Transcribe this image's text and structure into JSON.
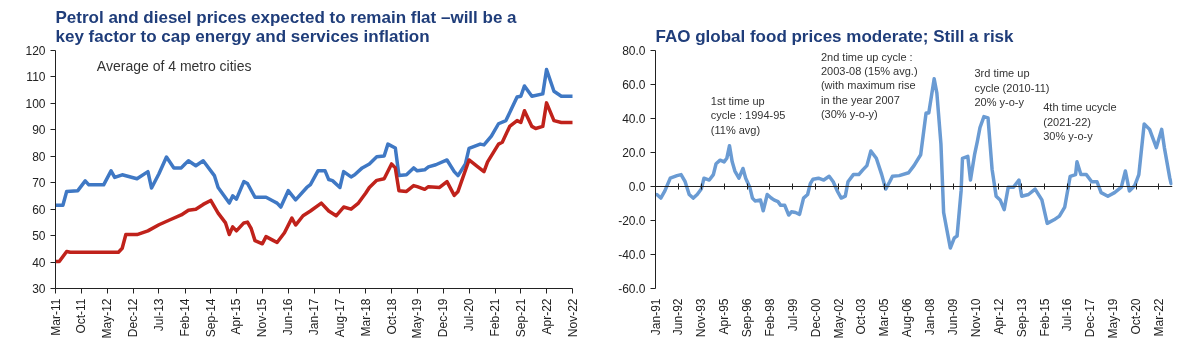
{
  "chart_data": [
    {
      "type": "line",
      "title": "Petrol and diesel prices expected to remain flat –will be a key factor to cap energy and services inflation",
      "annotations": [
        "Average of 4 metro cities"
      ],
      "xlim": [
        "2011-03",
        "2022-11"
      ],
      "xticks": [
        {
          "value": "2011-03",
          "label": "Mar-11"
        },
        {
          "value": "2011-10",
          "label": "Oct-11"
        },
        {
          "value": "2012-05",
          "label": "May-12"
        },
        {
          "value": "2012-12",
          "label": "Dec-12"
        },
        {
          "value": "2013-07",
          "label": "Jul-13"
        },
        {
          "value": "2014-02",
          "label": "Feb-14"
        },
        {
          "value": "2014-09",
          "label": "Sep-14"
        },
        {
          "value": "2015-04",
          "label": "Apr-15"
        },
        {
          "value": "2015-11",
          "label": "Nov-15"
        },
        {
          "value": "2016-06",
          "label": "Jun-16"
        },
        {
          "value": "2017-01",
          "label": "Jan-17"
        },
        {
          "value": "2017-08",
          "label": "Aug-17"
        },
        {
          "value": "2018-03",
          "label": "Mar-18"
        },
        {
          "value": "2018-10",
          "label": "Oct-18"
        },
        {
          "value": "2019-05",
          "label": "May-19"
        },
        {
          "value": "2019-12",
          "label": "Dec-19"
        },
        {
          "value": "2020-07",
          "label": "Jul-20"
        },
        {
          "value": "2021-02",
          "label": "Feb-21"
        },
        {
          "value": "2021-09",
          "label": "Sep-21"
        },
        {
          "value": "2022-04",
          "label": "Apr-22"
        },
        {
          "value": "2022-11",
          "label": "Nov-22"
        }
      ],
      "ylim": [
        30,
        120
      ],
      "yticks": [
        30,
        40,
        50,
        60,
        70,
        80,
        90,
        100,
        110,
        120
      ],
      "series": [
        {
          "color": "#3f78c4",
          "x": [
            "2011-03",
            "2011-05",
            "2011-06",
            "2011-09",
            "2011-11",
            "2011-12",
            "2012-04",
            "2012-06",
            "2012-07",
            "2012-09",
            "2013-01",
            "2013-04",
            "2013-05",
            "2013-07",
            "2013-09",
            "2013-11",
            "2014-01",
            "2014-02",
            "2014-03",
            "2014-05",
            "2014-07",
            "2014-10",
            "2014-11",
            "2015-02",
            "2015-03",
            "2015-04",
            "2015-06",
            "2015-07",
            "2015-09",
            "2015-12",
            "2016-02",
            "2016-03",
            "2016-04",
            "2016-06",
            "2016-08",
            "2016-11",
            "2016-12",
            "2017-02",
            "2017-04",
            "2017-05",
            "2017-06",
            "2017-08",
            "2017-09",
            "2017-11",
            "2017-12",
            "2018-02",
            "2018-04",
            "2018-06",
            "2018-08",
            "2018-09",
            "2018-11",
            "2018-12",
            "2019-02",
            "2019-04",
            "2019-05",
            "2019-07",
            "2019-08",
            "2019-10",
            "2020-01",
            "2020-03",
            "2020-04",
            "2020-06",
            "2020-07",
            "2020-10",
            "2020-11",
            "2021-01",
            "2021-03",
            "2021-05",
            "2021-08",
            "2021-09",
            "2021-10",
            "2021-12",
            "2022-03",
            "2022-04",
            "2022-06",
            "2022-08",
            "2022-11"
          ],
          "values": [
            61.5,
            61.5,
            66.7,
            67,
            70.7,
            69.2,
            69.2,
            74.5,
            72,
            73,
            71.5,
            74.2,
            68,
            73.4,
            79.7,
            75.6,
            75.6,
            77.1,
            78.3,
            76.4,
            78.3,
            72.7,
            68.2,
            62.3,
            65,
            63.8,
            70.4,
            69.7,
            64.5,
            64.5,
            63,
            62.3,
            60.8,
            67,
            63.5,
            68.2,
            69.3,
            74.5,
            74.5,
            71.2,
            70.8,
            68.2,
            74.2,
            72.2,
            73,
            75.6,
            77.1,
            79.8,
            80.1,
            84.6,
            83.1,
            72.7,
            73,
            75.6,
            74.5,
            74.9,
            76,
            76.8,
            78.6,
            74.2,
            72.7,
            77.1,
            83,
            84.6,
            84.3,
            87.6,
            92.3,
            93.5,
            102.4,
            102.7,
            106.6,
            102.7,
            103.6,
            112.8,
            104.6,
            102.7,
            102.7
          ]
        },
        {
          "color": "#c0221b",
          "x": [
            "2011-03",
            "2011-04",
            "2011-06",
            "2011-07",
            "2012-08",
            "2012-09",
            "2012-10",
            "2013-01",
            "2013-04",
            "2013-07",
            "2013-10",
            "2014-01",
            "2014-03",
            "2014-05",
            "2014-07",
            "2014-09",
            "2014-11",
            "2015-01",
            "2015-02",
            "2015-03",
            "2015-04",
            "2015-06",
            "2015-07",
            "2015-08",
            "2015-09",
            "2015-11",
            "2015-12",
            "2016-02",
            "2016-03",
            "2016-05",
            "2016-07",
            "2016-08",
            "2016-10",
            "2016-12",
            "2017-03",
            "2017-05",
            "2017-07",
            "2017-09",
            "2017-11",
            "2018-01",
            "2018-03",
            "2018-04",
            "2018-06",
            "2018-08",
            "2018-10",
            "2018-11",
            "2018-12",
            "2019-02",
            "2019-04",
            "2019-05",
            "2019-07",
            "2019-08",
            "2019-11",
            "2020-01",
            "2020-03",
            "2020-04",
            "2020-07",
            "2020-09",
            "2020-11",
            "2020-12",
            "2021-03",
            "2021-04",
            "2021-06",
            "2021-08",
            "2021-09",
            "2021-10",
            "2021-12",
            "2022-01",
            "2022-03",
            "2022-04",
            "2022-06",
            "2022-08",
            "2022-11"
          ],
          "values": [
            40.2,
            40.2,
            44,
            43.7,
            43.7,
            45.2,
            50.4,
            50.4,
            51.8,
            54.1,
            56,
            57.8,
            59.6,
            60,
            61.8,
            63.3,
            58.5,
            54.8,
            50.4,
            53.3,
            51.8,
            54.8,
            55.1,
            52.6,
            48.1,
            46.9,
            49.6,
            48.1,
            47.4,
            51.1,
            56.6,
            54,
            57.5,
            59.3,
            62.3,
            59.3,
            57.5,
            60.8,
            60,
            62.3,
            66,
            68.2,
            70.9,
            71.5,
            77.1,
            75.6,
            67,
            66.7,
            68.9,
            68.5,
            67.5,
            68.5,
            68.2,
            70.4,
            65.2,
            66.7,
            78.6,
            76.4,
            74.2,
            77.9,
            84.6,
            85.3,
            91.3,
            93.5,
            92.8,
            97.2,
            91.3,
            90.5,
            91.3,
            100.2,
            93.5,
            92.8,
            92.8
          ]
        }
      ]
    },
    {
      "type": "line",
      "title": "FAO global food prices moderate; Still a risk",
      "annotations": [
        "1st time up\ncycle : 1994-95\n(11% avg)",
        "2nd time up cycle :\n2003-08 (15% avg.)\n(with maximum rise\nin the year 2007\n(30% y-o-y)",
        "3rd time up\ncycle (2010-11)\n20% y-o-y",
        "4th time ucycle\n(2021-22)\n30% y-o-y"
      ],
      "xlim": [
        "1991-01",
        "2023-01"
      ],
      "xticks": [
        {
          "value": "1991-01",
          "label": "Jan-91"
        },
        {
          "value": "1992-06",
          "label": "Jun-92"
        },
        {
          "value": "1993-11",
          "label": "Nov-93"
        },
        {
          "value": "1995-04",
          "label": "Apr-95"
        },
        {
          "value": "1996-09",
          "label": "Sep-96"
        },
        {
          "value": "1998-02",
          "label": "Feb-98"
        },
        {
          "value": "1999-07",
          "label": "Jul-99"
        },
        {
          "value": "2000-12",
          "label": "Dec-00"
        },
        {
          "value": "2002-05",
          "label": "May-02"
        },
        {
          "value": "2003-10",
          "label": "Oct-03"
        },
        {
          "value": "2005-03",
          "label": "Mar-05"
        },
        {
          "value": "2006-08",
          "label": "Aug-06"
        },
        {
          "value": "2008-01",
          "label": "Jan-08"
        },
        {
          "value": "2009-06",
          "label": "Jun-09"
        },
        {
          "value": "2010-11",
          "label": "Nov-10"
        },
        {
          "value": "2012-04",
          "label": "Apr-12"
        },
        {
          "value": "2013-09",
          "label": "Sep-13"
        },
        {
          "value": "2015-02",
          "label": "Feb-15"
        },
        {
          "value": "2016-07",
          "label": "Jul-16"
        },
        {
          "value": "2017-12",
          "label": "Dec-17"
        },
        {
          "value": "2019-05",
          "label": "May-19"
        },
        {
          "value": "2020-10",
          "label": "Oct-20"
        },
        {
          "value": "2022-03",
          "label": "Mar-22"
        }
      ],
      "ylim": [
        -60,
        80
      ],
      "yticks": [
        {
          "value": -60,
          "label": "-60.0"
        },
        {
          "value": -40,
          "label": "-40.0"
        },
        {
          "value": -20,
          "label": "-20.0"
        },
        {
          "value": 0,
          "label": "0.0"
        },
        {
          "value": 20,
          "label": "20.0"
        },
        {
          "value": 40,
          "label": "40.0"
        },
        {
          "value": 60,
          "label": "60.0"
        },
        {
          "value": 80,
          "label": "80.0"
        }
      ],
      "series": [
        {
          "color": "#6a9bd3",
          "x": [
            "1991-02",
            "1991-05",
            "1991-08",
            "1991-12",
            "1992-05",
            "1992-08",
            "1992-11",
            "1993-02",
            "1993-05",
            "1993-08",
            "1993-11",
            "1994-01",
            "1994-05",
            "1994-08",
            "1994-10",
            "1995-01",
            "1995-04",
            "1995-06",
            "1995-08",
            "1995-10",
            "1995-12",
            "1996-03",
            "1996-06",
            "1996-08",
            "1996-11",
            "1997-01",
            "1997-03",
            "1997-07",
            "1997-09",
            "1997-12",
            "1998-03",
            "1998-05",
            "1998-08",
            "1998-10",
            "1999-01",
            "1999-04",
            "1999-06",
            "1999-09",
            "1999-12",
            "2000-03",
            "2000-06",
            "2000-08",
            "2000-10",
            "2001-02",
            "2001-06",
            "2001-10",
            "2002-01",
            "2002-04",
            "2002-07",
            "2002-10",
            "2002-12",
            "2003-04",
            "2003-08",
            "2003-11",
            "2004-02",
            "2004-05",
            "2004-09",
            "2005-01",
            "2005-04",
            "2005-07",
            "2005-09",
            "2006-02",
            "2006-09",
            "2007-01",
            "2007-06",
            "2007-10",
            "2007-12",
            "2008-04",
            "2008-06",
            "2008-09",
            "2008-11",
            "2009-02",
            "2009-04",
            "2009-07",
            "2009-09",
            "2009-12",
            "2010-01",
            "2010-05",
            "2010-07",
            "2010-10",
            "2010-12",
            "2011-02",
            "2011-05",
            "2011-08",
            "2011-11",
            "2012-02",
            "2012-05",
            "2012-08",
            "2012-11",
            "2013-03",
            "2013-07",
            "2013-09",
            "2014-02",
            "2014-07",
            "2014-12",
            "2015-04",
            "2015-09",
            "2016-01",
            "2016-05",
            "2016-09",
            "2017-01",
            "2017-02",
            "2017-05",
            "2017-09",
            "2018-01",
            "2018-05",
            "2018-08",
            "2019-01",
            "2019-06",
            "2019-11",
            "2020-02",
            "2020-05",
            "2020-09",
            "2020-12",
            "2021-04",
            "2021-08",
            "2022-01",
            "2022-05",
            "2022-07",
            "2022-11",
            "2022-12"
          ],
          "values": [
            -4.7,
            -6.8,
            -2.6,
            4.9,
            6.4,
            7,
            2.8,
            -4.7,
            -6.8,
            -4.7,
            -1.5,
            4.9,
            3.8,
            7,
            13.4,
            15.5,
            14.5,
            16.6,
            24,
            14.5,
            9.1,
            4.9,
            10.6,
            4.9,
            -0.4,
            -6.8,
            -8.5,
            -7.9,
            -14.3,
            -4.7,
            -6.8,
            -7.9,
            -8.9,
            -11.1,
            -11.1,
            -16.8,
            -14.9,
            -15.3,
            -16.4,
            -6.8,
            -4.7,
            1.7,
            4.3,
            4.9,
            3.8,
            6,
            2.8,
            -2.6,
            -6.8,
            -5.7,
            2.8,
            7,
            7,
            9.8,
            12.3,
            20.9,
            16.6,
            7,
            -1.5,
            2.8,
            6,
            6.4,
            8.1,
            12.3,
            18.7,
            43.2,
            43.2,
            63.4,
            54.9,
            25.1,
            -15.3,
            -28.1,
            -36.2,
            -30.2,
            -29.1,
            -2.6,
            16.6,
            17.7,
            3.8,
            18.7,
            26.2,
            34.7,
            41.1,
            40.4,
            10.2,
            -5.7,
            -7.9,
            -13.6,
            -0.4,
            -0.4,
            3.8,
            -5.7,
            -4.7,
            -1.5,
            -7.9,
            -21.7,
            -19.6,
            -17.4,
            -12.1,
            6,
            7,
            14.5,
            7,
            7,
            2.8,
            2.8,
            -3.6,
            -5.7,
            -3.6,
            -0.4,
            9.1,
            -2.6,
            0.6,
            7,
            36.8,
            33.6,
            22.9,
            33.6,
            22.9,
            4.9,
            1.7
          ]
        }
      ]
    }
  ]
}
